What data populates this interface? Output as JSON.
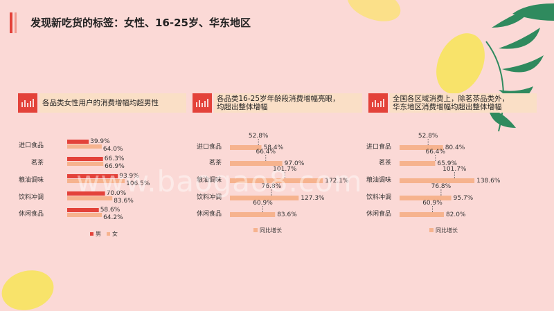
{
  "title": "发现新吃货的标签：女性、16-25岁、华东地区",
  "watermark": "www.baogao8.com",
  "colors": {
    "male": "#e3423a",
    "female": "#f6b38e",
    "growth": "#f6b38e",
    "accent": "#e3423a"
  },
  "chart_data": [
    {
      "type": "bar",
      "title": "各品类女性用户的消费增幅均超男性",
      "categories": [
        "进口食品",
        "茗茶",
        "粮油调味",
        "饮料冲调",
        "休闲食品"
      ],
      "series": [
        {
          "name": "男",
          "values": [
            39.9,
            66.3,
            93.9,
            70.0,
            58.6
          ]
        },
        {
          "name": "女",
          "values": [
            64.0,
            66.9,
            106.5,
            83.6,
            64.2
          ]
        }
      ],
      "legend": "bottom"
    },
    {
      "type": "bar",
      "title": "各品类16-25岁年龄段消费增幅亮眼，均超出整体增幅",
      "title_lines": [
        "各品类16-25岁年龄段消费增幅亮眼，",
        "均超出整体增幅"
      ],
      "categories": [
        "进口食品",
        "茗茶",
        "粮油调味",
        "饮料冲调",
        "休闲食品"
      ],
      "series": [
        {
          "name": "同比增长",
          "values": [
            58.4,
            97.0,
            172.1,
            127.3,
            83.6
          ]
        }
      ],
      "overall": [
        52.8,
        66.4,
        101.7,
        76.8,
        60.9
      ],
      "legend": "bottom"
    },
    {
      "type": "bar",
      "title": "全国各区域消费上，除茗茶品类外，华东地区消费增幅均超出整体增幅",
      "title_lines": [
        "全国各区域消费上，除茗茶品类外，",
        "华东地区消费增幅均超出整体增幅"
      ],
      "categories": [
        "进口食品",
        "茗茶",
        "粮油调味",
        "饮料冲调",
        "休闲食品"
      ],
      "series": [
        {
          "name": "同比增长",
          "values": [
            80.4,
            65.9,
            138.6,
            95.7,
            82.0
          ]
        }
      ],
      "overall": [
        52.8,
        66.4,
        101.7,
        76.8,
        60.9
      ],
      "legend": "bottom"
    }
  ]
}
